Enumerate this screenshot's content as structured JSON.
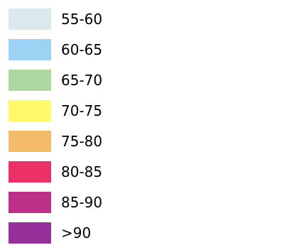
{
  "legend": {
    "items": [
      {
        "label": "55-60",
        "color": "#dbe9ef"
      },
      {
        "label": "60-65",
        "color": "#9dd2f5"
      },
      {
        "label": "65-70",
        "color": "#add9a1"
      },
      {
        "label": "70-75",
        "color": "#fff96a"
      },
      {
        "label": "75-80",
        "color": "#f4bc68"
      },
      {
        "label": "80-85",
        "color": "#ec3168"
      },
      {
        "label": "85-90",
        "color": "#bc3089"
      },
      {
        "label": ">90",
        "color": "#98309b"
      }
    ]
  }
}
